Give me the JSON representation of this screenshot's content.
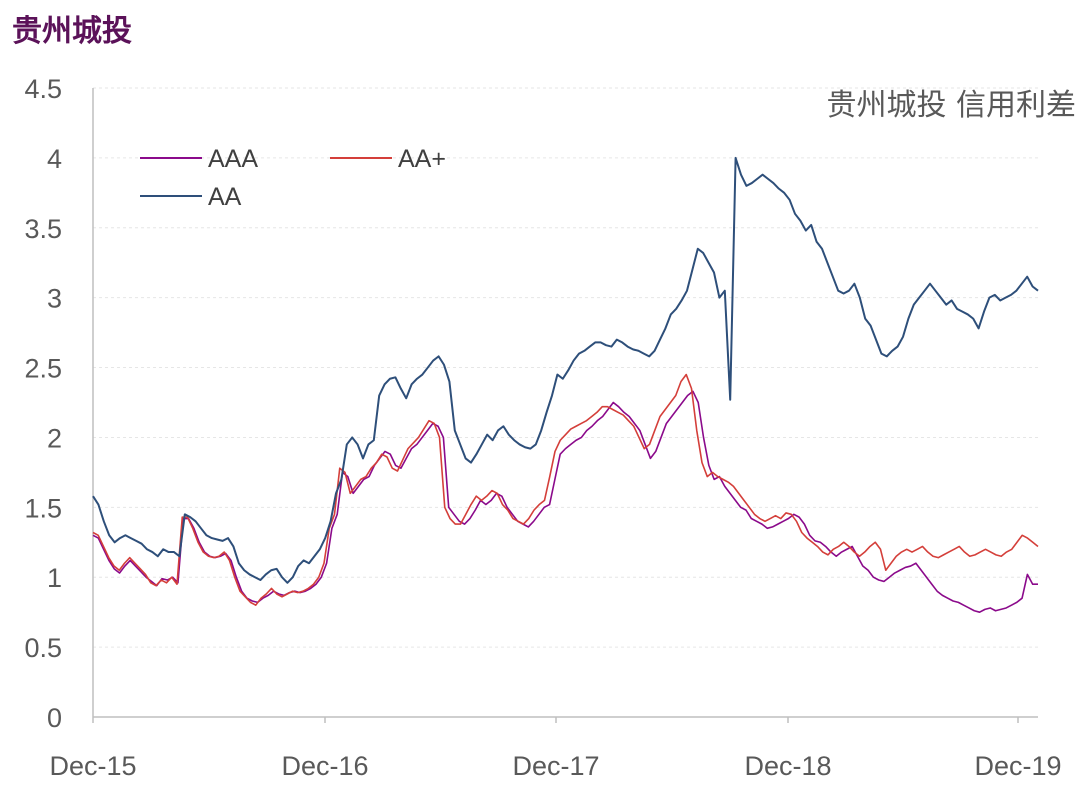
{
  "page_title": "贵州城投",
  "chart_data": {
    "type": "line",
    "annotation": "贵州城投 信用利差",
    "ylim": [
      0,
      4.5
    ],
    "y_ticks": [
      "0",
      "0.5",
      "1",
      "1.5",
      "2",
      "2.5",
      "3",
      "3.5",
      "4",
      "4.5"
    ],
    "x_ticks": [
      "Dec-15",
      "Dec-16",
      "Dec-17",
      "Dec-18",
      "Dec-19"
    ],
    "grid": true,
    "legend_position": "top-left",
    "series": [
      {
        "name": "AAA",
        "color": "#8b0a8b",
        "values": [
          1.3,
          1.28,
          1.2,
          1.12,
          1.06,
          1.03,
          1.08,
          1.12,
          1.08,
          1.04,
          1.0,
          0.97,
          0.94,
          0.99,
          0.98,
          1.0,
          0.96,
          1.42,
          1.42,
          1.35,
          1.25,
          1.18,
          1.15,
          1.14,
          1.15,
          1.17,
          1.12,
          1.0,
          0.9,
          0.85,
          0.83,
          0.82,
          0.85,
          0.87,
          0.9,
          0.88,
          0.87,
          0.89,
          0.9,
          0.89,
          0.9,
          0.92,
          0.95,
          1.0,
          1.1,
          1.35,
          1.45,
          1.75,
          1.72,
          1.6,
          1.65,
          1.7,
          1.72,
          1.8,
          1.85,
          1.9,
          1.88,
          1.8,
          1.78,
          1.85,
          1.92,
          1.95,
          2.0,
          2.05,
          2.1,
          2.08,
          2.0,
          1.5,
          1.45,
          1.4,
          1.38,
          1.42,
          1.48,
          1.55,
          1.52,
          1.55,
          1.6,
          1.58,
          1.5,
          1.45,
          1.4,
          1.38,
          1.36,
          1.4,
          1.45,
          1.5,
          1.52,
          1.7,
          1.88,
          1.92,
          1.95,
          1.98,
          2.0,
          2.05,
          2.08,
          2.12,
          2.15,
          2.2,
          2.25,
          2.22,
          2.18,
          2.15,
          2.1,
          2.05,
          1.95,
          1.85,
          1.9,
          2.0,
          2.1,
          2.15,
          2.2,
          2.25,
          2.3,
          2.33,
          2.25,
          2.0,
          1.8,
          1.7,
          1.72,
          1.65,
          1.6,
          1.55,
          1.5,
          1.48,
          1.42,
          1.4,
          1.38,
          1.35,
          1.36,
          1.38,
          1.4,
          1.42,
          1.45,
          1.43,
          1.38,
          1.3,
          1.26,
          1.25,
          1.22,
          1.18,
          1.15,
          1.18,
          1.2,
          1.22,
          1.15,
          1.08,
          1.05,
          1.0,
          0.98,
          0.97,
          1.0,
          1.03,
          1.05,
          1.07,
          1.08,
          1.1,
          1.05,
          1.0,
          0.95,
          0.9,
          0.87,
          0.85,
          0.83,
          0.82,
          0.8,
          0.78,
          0.76,
          0.75,
          0.77,
          0.78,
          0.76,
          0.77,
          0.78,
          0.8,
          0.82,
          0.85,
          1.02,
          0.95,
          0.95
        ]
      },
      {
        "name": "AA+",
        "color": "#d43f3a",
        "values": [
          1.32,
          1.3,
          1.22,
          1.14,
          1.08,
          1.05,
          1.1,
          1.14,
          1.1,
          1.06,
          1.02,
          0.96,
          0.94,
          0.98,
          0.96,
          1.0,
          0.95,
          1.43,
          1.43,
          1.35,
          1.25,
          1.18,
          1.15,
          1.14,
          1.15,
          1.18,
          1.12,
          1.0,
          0.9,
          0.86,
          0.82,
          0.8,
          0.85,
          0.88,
          0.92,
          0.88,
          0.86,
          0.88,
          0.9,
          0.89,
          0.9,
          0.92,
          0.95,
          1.0,
          1.1,
          1.35,
          1.45,
          1.78,
          1.75,
          1.6,
          1.65,
          1.7,
          1.72,
          1.78,
          1.82,
          1.88,
          1.86,
          1.78,
          1.76,
          1.84,
          1.92,
          1.96,
          2.0,
          2.06,
          2.12,
          2.1,
          2.0,
          1.5,
          1.42,
          1.38,
          1.38,
          1.45,
          1.52,
          1.58,
          1.55,
          1.58,
          1.62,
          1.6,
          1.52,
          1.48,
          1.42,
          1.4,
          1.38,
          1.42,
          1.48,
          1.52,
          1.55,
          1.72,
          1.9,
          1.98,
          2.02,
          2.06,
          2.08,
          2.1,
          2.12,
          2.15,
          2.18,
          2.22,
          2.22,
          2.2,
          2.18,
          2.16,
          2.12,
          2.08,
          2.0,
          1.92,
          1.95,
          2.05,
          2.15,
          2.2,
          2.25,
          2.3,
          2.4,
          2.45,
          2.35,
          2.05,
          1.82,
          1.72,
          1.75,
          1.72,
          1.7,
          1.68,
          1.65,
          1.6,
          1.55,
          1.5,
          1.45,
          1.42,
          1.4,
          1.42,
          1.44,
          1.42,
          1.46,
          1.45,
          1.4,
          1.32,
          1.28,
          1.25,
          1.22,
          1.18,
          1.16,
          1.2,
          1.22,
          1.25,
          1.22,
          1.18,
          1.15,
          1.18,
          1.22,
          1.25,
          1.2,
          1.05,
          1.1,
          1.15,
          1.18,
          1.2,
          1.18,
          1.2,
          1.22,
          1.18,
          1.15,
          1.14,
          1.16,
          1.18,
          1.2,
          1.22,
          1.18,
          1.15,
          1.16,
          1.18,
          1.2,
          1.18,
          1.16,
          1.15,
          1.18,
          1.2,
          1.25,
          1.3,
          1.28,
          1.25,
          1.22
        ]
      },
      {
        "name": "AA",
        "color": "#2e4f7a",
        "values": [
          1.58,
          1.52,
          1.4,
          1.3,
          1.25,
          1.28,
          1.3,
          1.28,
          1.26,
          1.24,
          1.2,
          1.18,
          1.15,
          1.2,
          1.18,
          1.18,
          1.15,
          1.45,
          1.43,
          1.4,
          1.35,
          1.3,
          1.28,
          1.27,
          1.26,
          1.28,
          1.22,
          1.1,
          1.05,
          1.02,
          1.0,
          0.98,
          1.02,
          1.05,
          1.06,
          1.0,
          0.96,
          1.0,
          1.08,
          1.12,
          1.1,
          1.15,
          1.2,
          1.28,
          1.4,
          1.6,
          1.7,
          1.95,
          2.0,
          1.95,
          1.85,
          1.95,
          1.98,
          2.3,
          2.38,
          2.42,
          2.43,
          2.35,
          2.28,
          2.38,
          2.42,
          2.45,
          2.5,
          2.55,
          2.58,
          2.52,
          2.4,
          2.05,
          1.95,
          1.85,
          1.82,
          1.88,
          1.95,
          2.02,
          1.98,
          2.05,
          2.08,
          2.02,
          1.98,
          1.95,
          1.93,
          1.92,
          1.95,
          2.05,
          2.18,
          2.3,
          2.45,
          2.42,
          2.48,
          2.55,
          2.6,
          2.62,
          2.65,
          2.68,
          2.68,
          2.66,
          2.65,
          2.7,
          2.68,
          2.65,
          2.63,
          2.62,
          2.6,
          2.58,
          2.62,
          2.7,
          2.78,
          2.88,
          2.92,
          2.98,
          3.05,
          3.2,
          3.35,
          3.32,
          3.25,
          3.18,
          3.0,
          3.05,
          2.27,
          4.0,
          3.88,
          3.8,
          3.82,
          3.85,
          3.88,
          3.85,
          3.82,
          3.78,
          3.75,
          3.7,
          3.6,
          3.55,
          3.48,
          3.52,
          3.4,
          3.35,
          3.25,
          3.15,
          3.05,
          3.03,
          3.05,
          3.1,
          3.0,
          2.85,
          2.8,
          2.7,
          2.6,
          2.58,
          2.62,
          2.65,
          2.72,
          2.85,
          2.95,
          3.0,
          3.05,
          3.1,
          3.05,
          3.0,
          2.95,
          2.98,
          2.92,
          2.9,
          2.88,
          2.85,
          2.78,
          2.9,
          3.0,
          3.02,
          2.98,
          3.0,
          3.02,
          3.05,
          3.1,
          3.15,
          3.08,
          3.05
        ]
      }
    ]
  }
}
